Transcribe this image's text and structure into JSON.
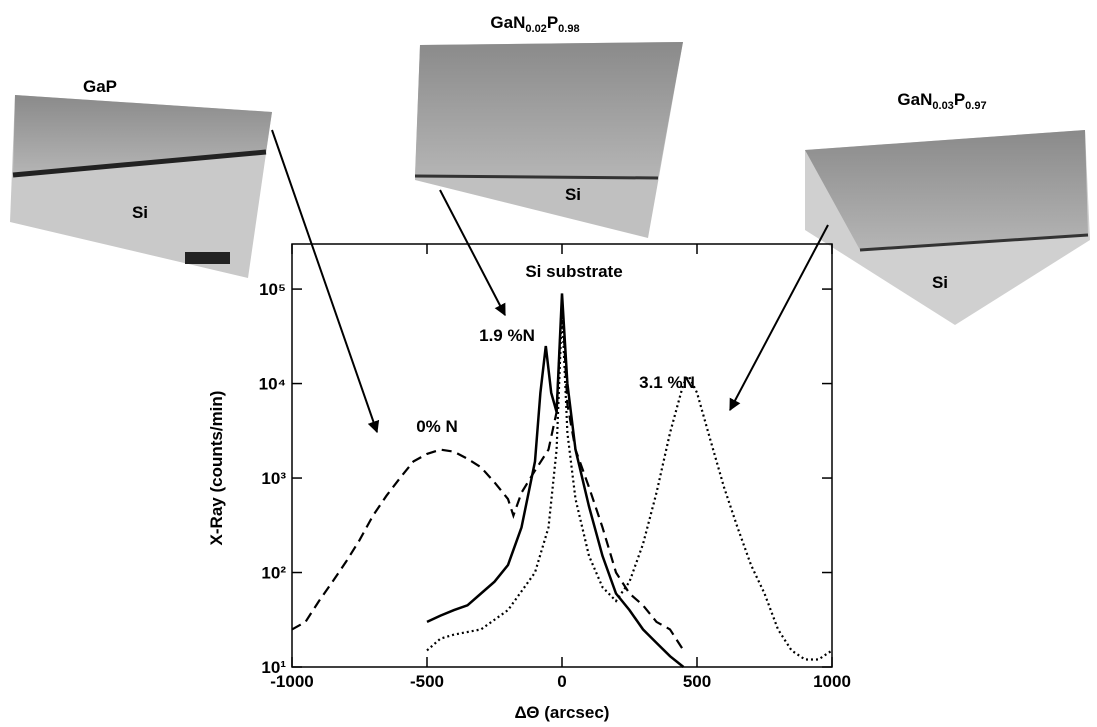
{
  "chart_data": {
    "type": "line",
    "x_label": "ΔΘ (arcsec)",
    "y_label": "X-Ray (counts/min)",
    "log_y": true,
    "xlim": [
      -1000,
      1000
    ],
    "xticks": [
      -1000,
      -500,
      0,
      500,
      1000
    ],
    "ylim": [
      10,
      300000
    ],
    "yticks": [
      {
        "value": 10,
        "label": "10¹"
      },
      {
        "value": 100,
        "label": "10²"
      },
      {
        "value": 1000,
        "label": "10³"
      },
      {
        "value": 10000,
        "label": "10⁴"
      },
      {
        "value": 100000,
        "label": "10⁵"
      }
    ],
    "annotation": "Si substrate",
    "series": [
      {
        "name": "0% N",
        "color": "#000000",
        "dash": "dashed",
        "x": [
          -1000,
          -950,
          -900,
          -850,
          -800,
          -750,
          -700,
          -650,
          -600,
          -550,
          -500,
          -450,
          -400,
          -350,
          -300,
          -250,
          -200,
          -180,
          -150,
          -100,
          -50,
          -20,
          0,
          20,
          50,
          100,
          150,
          200,
          250,
          300,
          350,
          400,
          450
        ],
        "values": [
          25,
          30,
          50,
          80,
          130,
          220,
          400,
          650,
          1000,
          1500,
          1800,
          2000,
          1900,
          1600,
          1300,
          900,
          600,
          400,
          700,
          1200,
          2000,
          5000,
          80000,
          6000,
          2000,
          800,
          300,
          100,
          60,
          45,
          30,
          25,
          15
        ]
      },
      {
        "name": "1.9 %N",
        "color": "#000000",
        "dash": "solid",
        "x": [
          -500,
          -450,
          -400,
          -350,
          -300,
          -250,
          -200,
          -150,
          -100,
          -80,
          -60,
          -40,
          -20,
          0,
          20,
          50,
          100,
          150,
          200,
          250,
          300,
          350,
          400,
          450
        ],
        "values": [
          30,
          35,
          40,
          45,
          60,
          80,
          120,
          300,
          1500,
          8000,
          25000,
          8000,
          5000,
          90000,
          10000,
          2000,
          500,
          150,
          60,
          40,
          25,
          18,
          13,
          10
        ]
      },
      {
        "name": "3.1 %N",
        "color": "#000000",
        "dash": "dotted",
        "x": [
          -500,
          -450,
          -400,
          -300,
          -200,
          -100,
          -50,
          -20,
          0,
          20,
          50,
          100,
          150,
          200,
          250,
          300,
          350,
          400,
          450,
          470,
          500,
          550,
          600,
          650,
          700,
          750,
          800,
          850,
          900,
          950,
          1000
        ],
        "values": [
          15,
          20,
          22,
          25,
          40,
          100,
          300,
          2000,
          60000,
          3000,
          600,
          150,
          70,
          50,
          80,
          200,
          700,
          3000,
          10000,
          12000,
          8000,
          2500,
          800,
          300,
          120,
          60,
          25,
          15,
          12,
          12,
          15
        ]
      }
    ]
  },
  "images": [
    {
      "title": [
        "GaP"
      ],
      "substrate": "Si"
    },
    {
      "title": [
        "GaN",
        "0.02",
        "P",
        "0.98"
      ],
      "substrate": "Si"
    },
    {
      "title": [
        "GaN",
        "0.03",
        "P",
        "0.97"
      ],
      "substrate": "Si"
    }
  ]
}
